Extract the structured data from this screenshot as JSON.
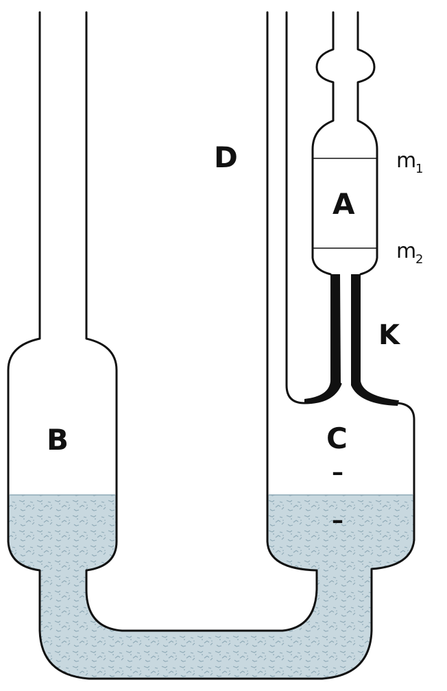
{
  "labels": {
    "vessel_a": "A",
    "vessel_b": "B",
    "vessel_c": "C",
    "tube_d": "D",
    "capillary_k": "K",
    "mark_m1": "m",
    "mark_m1_sub": "1",
    "mark_m2": "m",
    "mark_m2_sub": "2",
    "level_mark_upper": "–",
    "level_mark_lower": "–"
  },
  "colors": {
    "outline": "#111111",
    "liquid": "#c8d8df",
    "liquid_speckle": "#8ea9b6",
    "background": "#ffffff"
  }
}
